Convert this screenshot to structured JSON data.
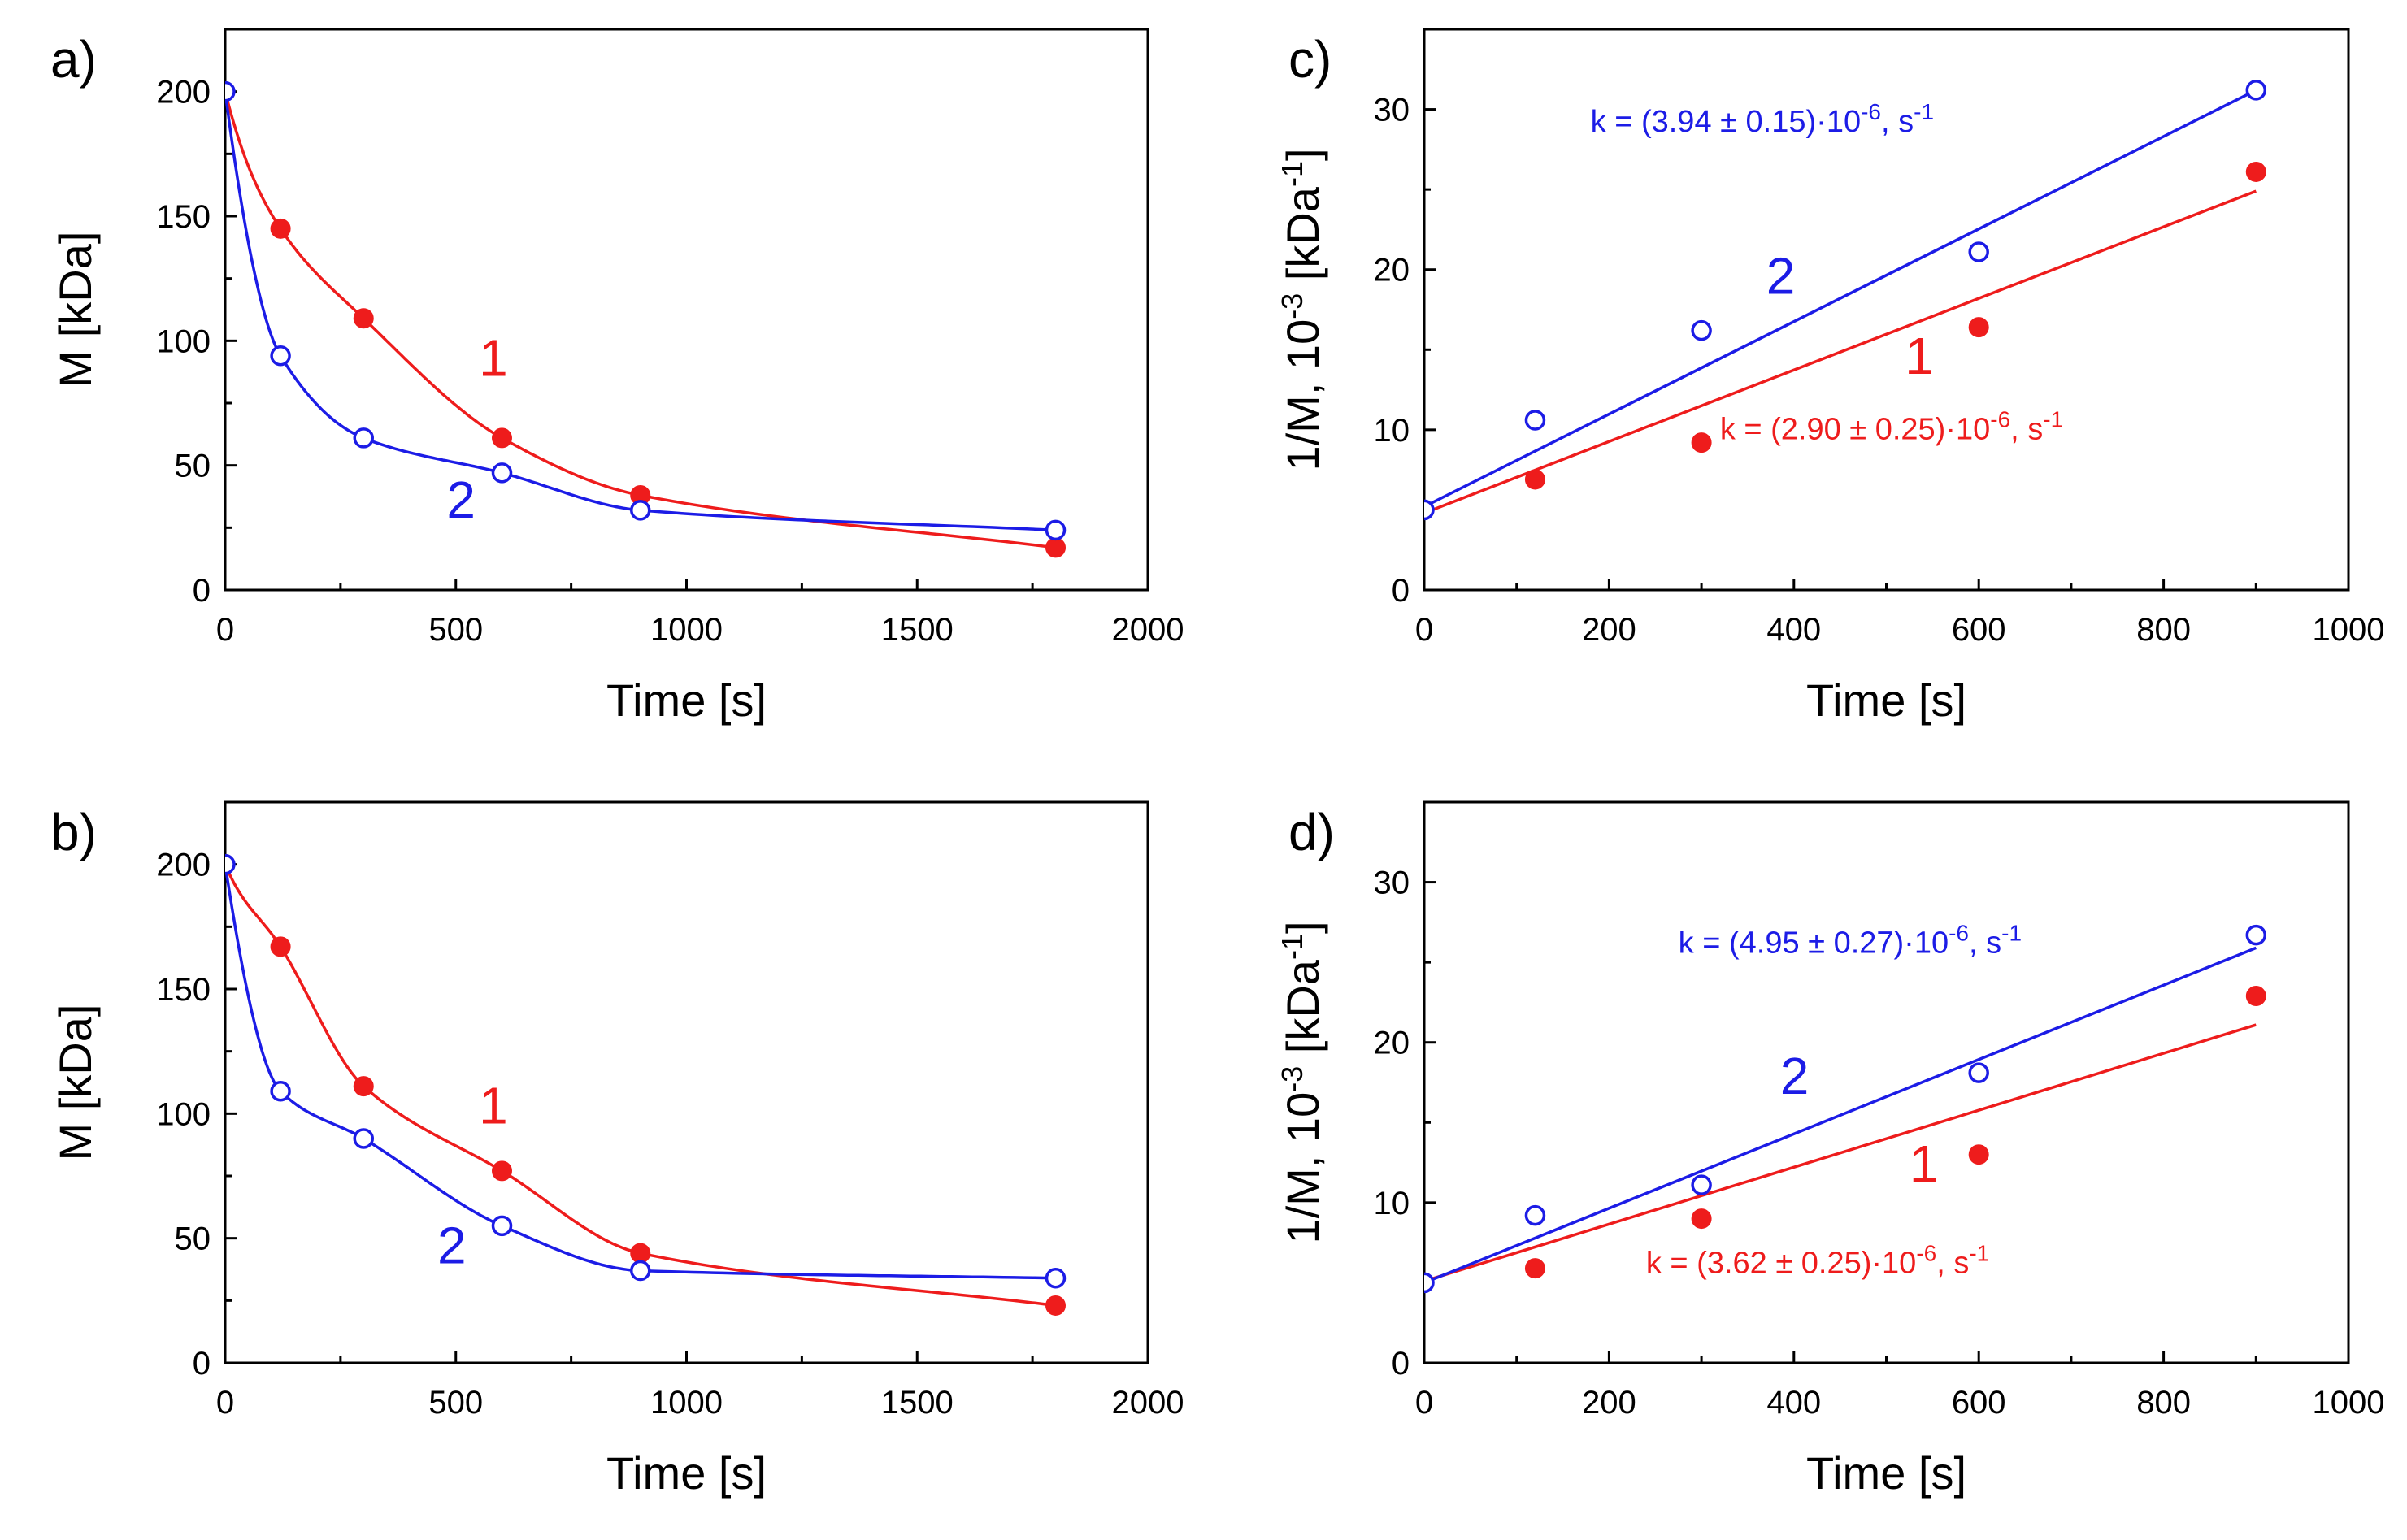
{
  "chart_data": [
    {
      "panel": "a)",
      "type": "scatter",
      "xlabel": "Time [s]",
      "ylabel": "M [kDa]",
      "xlim": [
        0,
        2000
      ],
      "ylim": [
        0,
        225
      ],
      "xticks": [
        0,
        500,
        1000,
        1500,
        2000
      ],
      "yticks": [
        0,
        50,
        100,
        150,
        200
      ],
      "series": [
        {
          "name": "1",
          "marker": "filled",
          "color": "#ee1c1c",
          "x": [
            0,
            120,
            300,
            600,
            900,
            1800
          ],
          "y": [
            200,
            145,
            109,
            61,
            38,
            17
          ],
          "fit": {
            "kind": "exp",
            "a": 162,
            "b": 0.0025,
            "c": 38,
            "d": -1.18e-05
          }
        },
        {
          "name": "2",
          "marker": "open",
          "color": "#1c1ce6",
          "x": [
            0,
            120,
            300,
            600,
            900,
            1800
          ],
          "y": [
            200,
            94,
            61,
            47,
            32,
            24
          ],
          "fit": {
            "kind": "exp",
            "a": 130,
            "b": 0.0106,
            "c": 70,
            "d": 0.00059
          }
        }
      ],
      "labels": [
        {
          "text": "1",
          "color": "#ee1c1c",
          "at": [
            550,
            86
          ]
        },
        {
          "text": "2",
          "color": "#1c1ce6",
          "at": [
            480,
            29
          ]
        }
      ]
    },
    {
      "panel": "b)",
      "type": "scatter",
      "xlabel": "Time [s]",
      "ylabel": "M [kDa]",
      "xlim": [
        0,
        2000
      ],
      "ylim": [
        0,
        225
      ],
      "xticks": [
        0,
        500,
        1000,
        1500,
        2000
      ],
      "yticks": [
        0,
        50,
        100,
        150,
        200
      ],
      "series": [
        {
          "name": "1",
          "marker": "filled",
          "color": "#ee1c1c",
          "x": [
            0,
            120,
            300,
            600,
            900,
            1800
          ],
          "y": [
            200,
            167,
            111,
            77,
            44,
            23
          ],
          "fit": {
            "kind": "exp",
            "a": 145,
            "b": 0.0025,
            "c": 55,
            "d": 0.00046
          }
        },
        {
          "name": "2",
          "marker": "open",
          "color": "#1c1ce6",
          "x": [
            0,
            120,
            300,
            600,
            900,
            1800
          ],
          "y": [
            200,
            109,
            90,
            55,
            37,
            34
          ],
          "fit": {
            "kind": "exp",
            "a": 70,
            "b": 0.025,
            "c": 130,
            "d": 0.0022,
            "e": 34
          }
        }
      ],
      "labels": [
        {
          "text": "1",
          "color": "#ee1c1c",
          "at": [
            550,
            96
          ]
        },
        {
          "text": "2",
          "color": "#1c1ce6",
          "at": [
            460,
            40
          ]
        }
      ]
    },
    {
      "panel": "c)",
      "type": "scatter",
      "xlabel": "Time [s]",
      "ylabel": "1/M, 10^-3 [kDa^-1]",
      "xlim": [
        0,
        1000
      ],
      "ylim": [
        0,
        35
      ],
      "xticks": [
        0,
        200,
        400,
        600,
        800,
        1000
      ],
      "yticks": [
        0,
        10,
        20,
        30
      ],
      "series": [
        {
          "name": "1",
          "marker": "filled",
          "color": "#ee1c1c",
          "x": [
            0,
            120,
            300,
            600,
            900
          ],
          "y": [
            5,
            6.9,
            9.2,
            16.4,
            26.1
          ],
          "fit": {
            "kind": "line",
            "x0": 0,
            "y0": 4.8,
            "x1": 900,
            "y1": 24.9
          }
        },
        {
          "name": "2",
          "marker": "open",
          "color": "#1c1ce6",
          "x": [
            0,
            120,
            300,
            600,
            900
          ],
          "y": [
            5,
            10.6,
            16.2,
            21.1,
            31.2
          ],
          "fit": {
            "kind": "line",
            "x0": 0,
            "y0": 5.2,
            "x1": 900,
            "y1": 31.2
          }
        }
      ],
      "labels": [
        {
          "text": "2",
          "color": "#1c1ce6",
          "at": [
            370,
            18.5
          ]
        },
        {
          "text": "1",
          "color": "#ee1c1c",
          "at": [
            520,
            13.5
          ]
        }
      ],
      "annotations": [
        {
          "color": "#1c1ce6",
          "at": [
            180,
            28.6
          ],
          "text_main": "k = (3.94 ± 0.15)·10",
          "exp1": "-6",
          "text_mid": ", s",
          "exp2": "-1"
        },
        {
          "color": "#ee1c1c",
          "at": [
            320,
            9.4
          ],
          "text_main": "k = (2.90 ± 0.25)·10",
          "exp1": "-6",
          "text_mid": ", s",
          "exp2": "-1"
        }
      ]
    },
    {
      "panel": "d)",
      "type": "scatter",
      "xlabel": "Time [s]",
      "ylabel": "1/M, 10^-3 [kDa^-1]",
      "xlim": [
        0,
        1000
      ],
      "ylim": [
        0,
        35
      ],
      "xticks": [
        0,
        200,
        400,
        600,
        800,
        1000
      ],
      "yticks": [
        0,
        10,
        20,
        30
      ],
      "series": [
        {
          "name": "1",
          "marker": "filled",
          "color": "#ee1c1c",
          "x": [
            0,
            120,
            300,
            600,
            900
          ],
          "y": [
            5,
            5.9,
            9,
            13,
            22.9
          ],
          "fit": {
            "kind": "line",
            "x0": 0,
            "y0": 5.1,
            "x1": 900,
            "y1": 21.1
          }
        },
        {
          "name": "2",
          "marker": "open",
          "color": "#1c1ce6",
          "x": [
            0,
            120,
            300,
            600,
            900
          ],
          "y": [
            5,
            9.2,
            11.1,
            18.1,
            26.7
          ],
          "fit": {
            "kind": "line",
            "x0": 0,
            "y0": 5.0,
            "x1": 900,
            "y1": 25.9
          }
        }
      ],
      "labels": [
        {
          "text": "2",
          "color": "#1c1ce6",
          "at": [
            385,
            16.8
          ]
        },
        {
          "text": "1",
          "color": "#ee1c1c",
          "at": [
            525,
            11.3
          ]
        }
      ],
      "annotations": [
        {
          "color": "#1c1ce6",
          "at": [
            275,
            25.6
          ],
          "text_main": "k = (4.95 ± 0.27)·10",
          "exp1": "-6",
          "text_mid": ", s",
          "exp2": "-1"
        },
        {
          "color": "#ee1c1c",
          "at": [
            240,
            5.6
          ],
          "text_main": "k = (3.62 ± 0.25)·10",
          "exp1": "-6",
          "text_mid": ", s",
          "exp2": "-1"
        }
      ]
    }
  ]
}
